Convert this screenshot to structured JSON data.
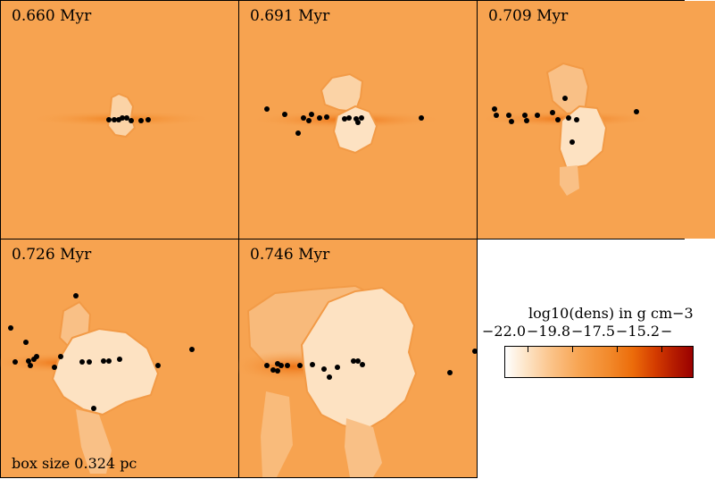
{
  "panels": [
    {
      "time_label": "0.660 Myr"
    },
    {
      "time_label": "0.691 Myr"
    },
    {
      "time_label": "0.709 Myr"
    },
    {
      "time_label": "0.726 Myr",
      "box_size_label": "box size 0.324 pc"
    },
    {
      "time_label": "0.746 Myr"
    }
  ],
  "colorbar": {
    "title": "log10(dens) in g cm−3",
    "tick_labels": [
      "−22.0",
      "−19.8",
      "−17.5",
      "−15.2",
      "−"
    ],
    "colors": {
      "low": "#ffffff",
      "mid": "#f7a350",
      "high": "#9a0000"
    }
  }
}
